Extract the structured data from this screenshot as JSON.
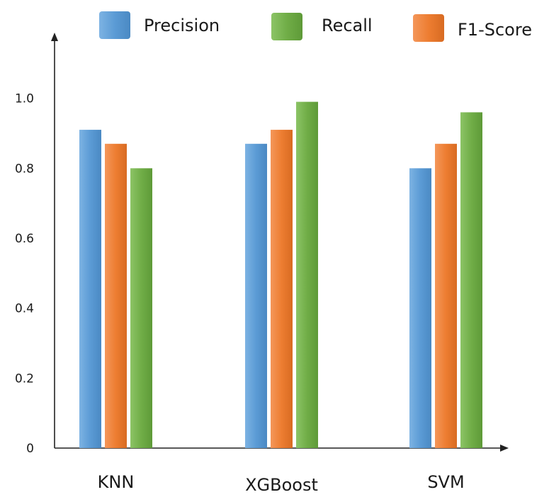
{
  "chart_data": {
    "type": "bar",
    "title": "",
    "xlabel": "",
    "ylabel": "",
    "categories": [
      "KNN",
      "XGBoost",
      "SVM"
    ],
    "series": [
      {
        "name": "Precision",
        "color": "#5B9BD5",
        "values": [
          0.91,
          0.87,
          0.8
        ]
      },
      {
        "name": "F1-Score",
        "color": "#ED7D31",
        "values": [
          0.87,
          0.91,
          0.87
        ]
      },
      {
        "name": "Recall",
        "color": "#70AD47",
        "values": [
          0.8,
          0.99,
          0.96
        ]
      }
    ],
    "bar_order": [
      [
        "Precision",
        "F1-Score",
        "Recall"
      ],
      [
        "Precision",
        "F1-Score",
        "Recall"
      ],
      [
        "Precision",
        "F1-Score",
        "Recall"
      ]
    ],
    "legend": {
      "placement": "top",
      "order": [
        "Precision",
        "Recall",
        "F1-Score"
      ]
    },
    "ylim": [
      0,
      1.2
    ],
    "yticks": [
      0,
      0.2,
      0.4,
      0.6,
      0.8,
      1.0
    ],
    "ytick_labels": [
      "0",
      "0.2",
      "0.4",
      "0.6",
      "0.8",
      "1.0"
    ],
    "grid": false
  }
}
